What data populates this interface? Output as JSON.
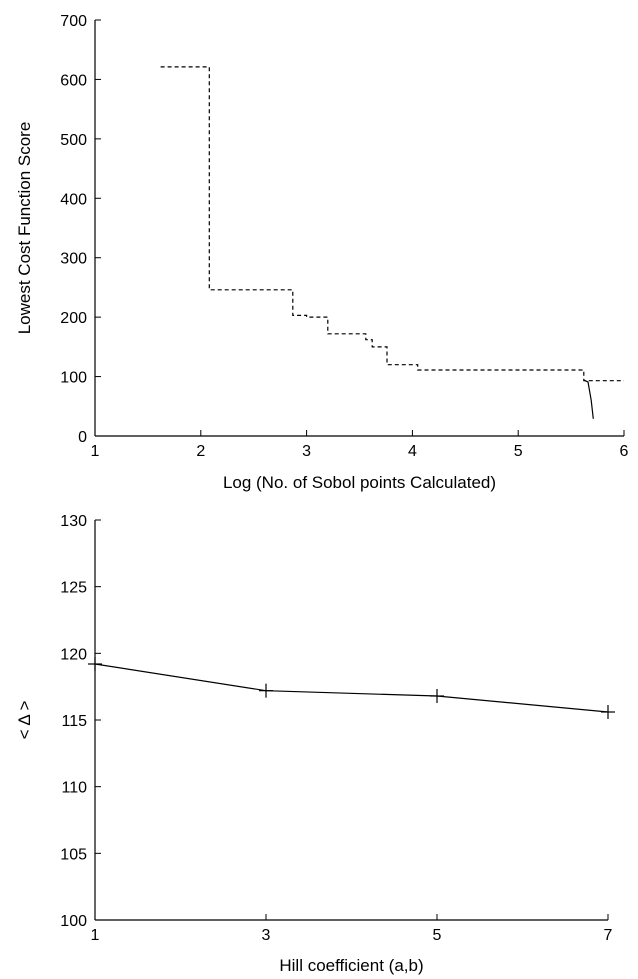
{
  "chart_data": [
    {
      "type": "line",
      "title": "",
      "xlabel": "Log (No. of Sobol points Calculated)",
      "ylabel": "Lowest Cost Function Score",
      "xlim": [
        1,
        6
      ],
      "ylim": [
        0,
        700
      ],
      "xticks": [
        "1",
        "2",
        "3",
        "4",
        "5",
        "6"
      ],
      "yticks": [
        "0",
        "100",
        "200",
        "300",
        "400",
        "500",
        "600",
        "700"
      ],
      "grid": false,
      "series": [
        {
          "style": "dashed",
          "step": true,
          "x": [
            1.62,
            2.08,
            2.08,
            2.87,
            2.87,
            3.0,
            3.0,
            3.2,
            3.2,
            3.56,
            3.56,
            3.62,
            3.62,
            3.76,
            3.76,
            4.05,
            4.05,
            5.62,
            5.62,
            5.68,
            5.68,
            6.0
          ],
          "y": [
            621,
            621,
            246,
            246,
            203,
            203,
            200,
            200,
            172,
            172,
            162,
            162,
            150,
            150,
            120,
            120,
            111,
            111,
            93,
            93,
            93,
            93
          ]
        },
        {
          "style": "solid",
          "x": [
            5.62,
            5.66,
            5.69,
            5.71
          ],
          "y": [
            94,
            91,
            60,
            29
          ]
        }
      ]
    },
    {
      "type": "line",
      "title": "",
      "xlabel": "Hill coefficient (a,b)",
      "ylabel": "< Δ >",
      "xlim": [
        1,
        7
      ],
      "ylim": [
        100,
        130
      ],
      "xticks": [
        "1",
        "3",
        "5",
        "7"
      ],
      "yticks": [
        "100",
        "105",
        "110",
        "115",
        "120",
        "125",
        "130"
      ],
      "grid": false,
      "series": [
        {
          "style": "solid",
          "marker": "+",
          "x": [
            1,
            3,
            5,
            7
          ],
          "y": [
            119.2,
            117.2,
            116.8,
            115.6
          ]
        }
      ]
    }
  ]
}
